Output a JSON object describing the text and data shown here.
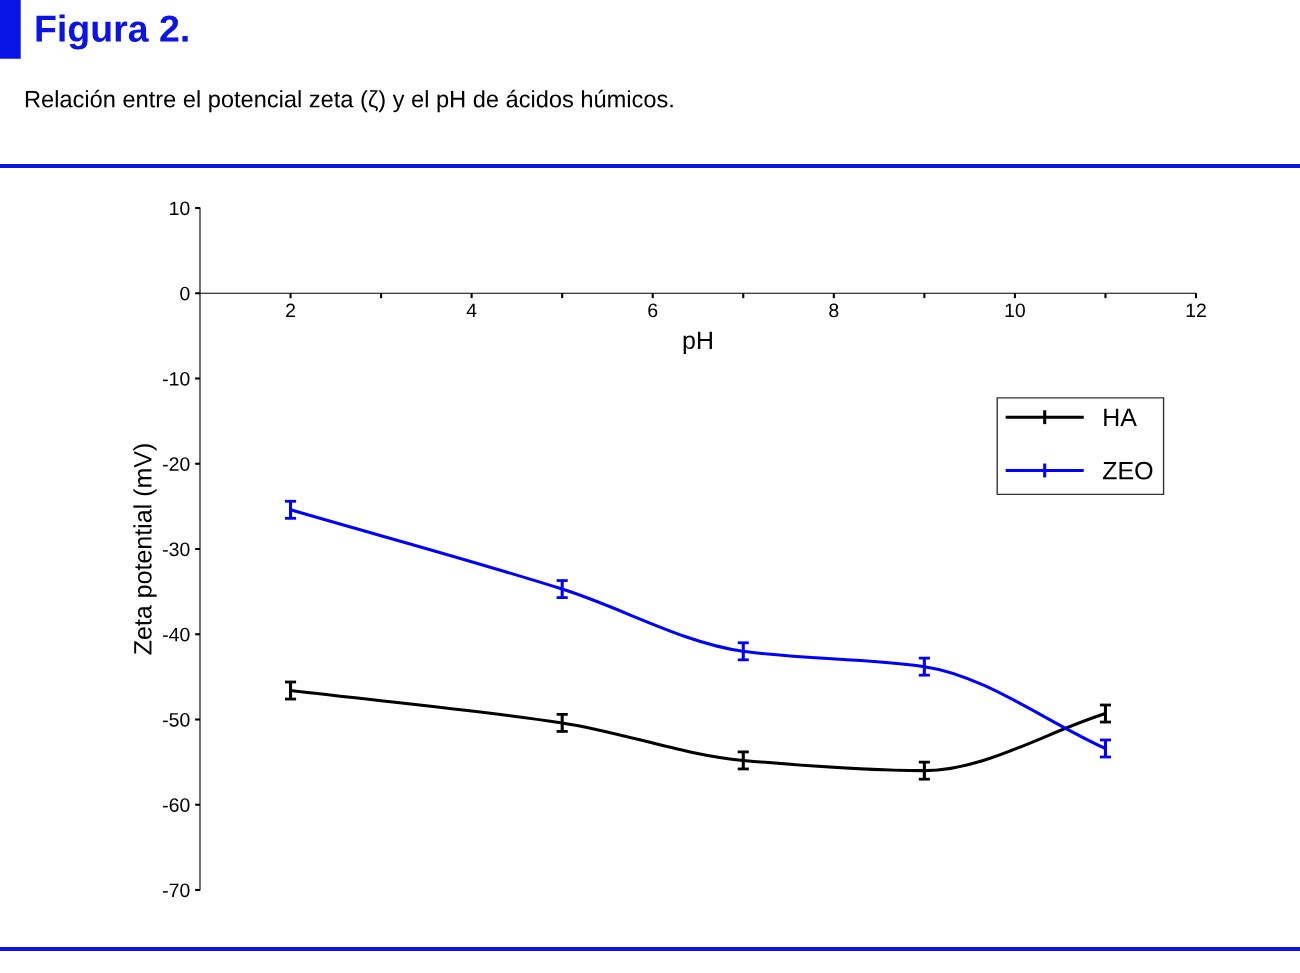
{
  "chart_data": {
    "type": "line",
    "title": "Figura 2.",
    "subtitle": "Relación entre el potencial zeta (ζ) y el pH de ácidos húmicos.",
    "xlabel": "pH",
    "ylabel": "Zeta potential (mV)",
    "x": [
      2,
      5,
      7,
      9,
      11
    ],
    "series": [
      {
        "name": "HA",
        "color": "#000000",
        "values": [
          -46.6,
          -50.4,
          -54.8,
          -56.0,
          -49.3
        ],
        "errors": [
          1,
          1,
          1,
          1,
          1
        ]
      },
      {
        "name": "ZEO",
        "color": "#0000ff",
        "values": [
          -25.4,
          -34.7,
          -42.0,
          -43.8,
          -53.4
        ],
        "errors": [
          1,
          1,
          1,
          1,
          1
        ]
      }
    ],
    "xlim": [
      1,
      12
    ],
    "xticks": [
      2,
      {
        "value": 3,
        "label": null
      },
      4,
      {
        "value": 5,
        "label": null
      },
      6,
      {
        "value": 7,
        "label": null
      },
      8,
      {
        "value": 9,
        "label": null
      },
      10,
      {
        "value": 11,
        "label": null
      },
      12
    ],
    "ylim": [
      -70,
      10
    ],
    "yticks": [
      10,
      0,
      -10,
      -20,
      -30,
      -40,
      -50,
      -60,
      -70
    ],
    "grid": false,
    "legend": "top right",
    "marker": "none",
    "line_style": "solid"
  }
}
